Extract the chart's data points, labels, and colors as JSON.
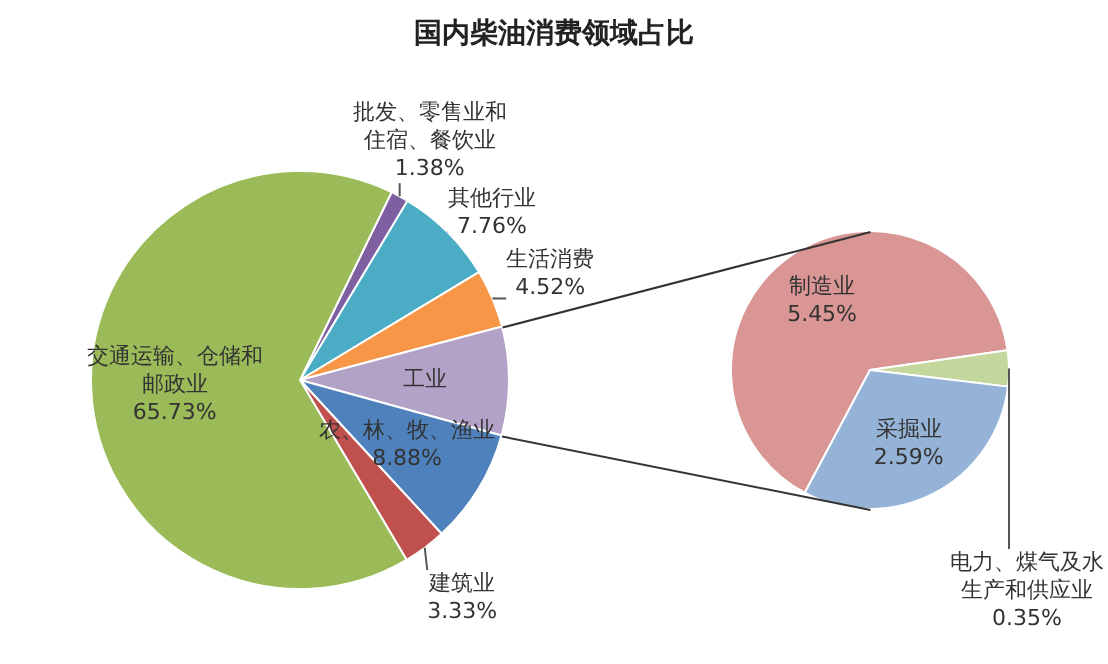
{
  "chart_data": [
    {
      "type": "pie",
      "title": "国内柴油消费领域占比",
      "categories": [
        "批发、零售业和住宿、餐饮业",
        "其他行业",
        "生活消费",
        "工业",
        "农、林、牧、渔业",
        "建筑业",
        "交通运输、仓储和邮政业"
      ],
      "values": [
        1.38,
        7.76,
        4.52,
        8.39,
        8.88,
        3.33,
        65.73
      ],
      "colors": [
        "#7e60a0",
        "#4aacc5",
        "#f79646",
        "#b3a2c7",
        "#4f81bd",
        "#c0504d",
        "#9bbb59"
      ],
      "value_labels": [
        "1.38%",
        "7.76%",
        "4.52%",
        null,
        "8.88%",
        "3.33%",
        "65.73%"
      ]
    },
    {
      "type": "pie",
      "categories": [
        "制造业",
        "电力、煤气及水生产和供应业",
        "采掘业"
      ],
      "values": [
        5.45,
        0.35,
        2.59
      ],
      "colors": [
        "#d99694",
        "#c3d69b",
        "#95b3d7"
      ],
      "value_labels": [
        "5.45%",
        "0.35%",
        "2.59%"
      ]
    }
  ]
}
